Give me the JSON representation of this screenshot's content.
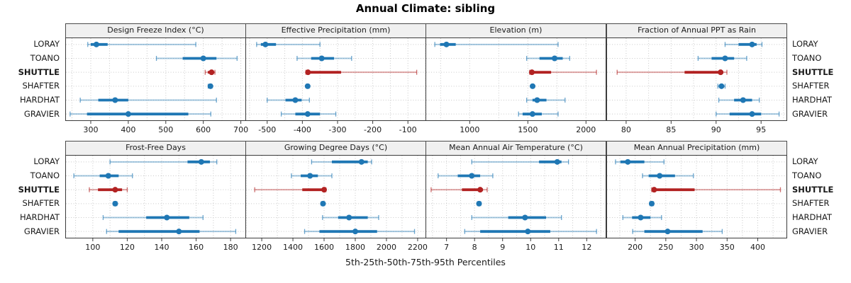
{
  "figure": {
    "title": "Annual Climate: sibling",
    "caption": "5th-25th-50th-75th-95th Percentiles"
  },
  "chart_data": {
    "type": "dotplot",
    "layout": "lattice 2 rows x 4 columns, percentile whisker dotplots",
    "percentile_levels": [
      5,
      25,
      50,
      75,
      95
    ],
    "stations": [
      "LORAY",
      "TOANO",
      "SHUTTLE",
      "SHAFTER",
      "HARDHAT",
      "GRAVIER"
    ],
    "highlight_station": "SHUTTLE",
    "colors": {
      "normal": "#1F77B4",
      "highlight": "#B22222",
      "strip_bg": "#f0f0f0",
      "grid": "#c9c9c9",
      "border": "#3c3c3c"
    },
    "panels": [
      {
        "title": "Design Freeze Index (°C)",
        "xlim": [
          232,
          714
        ],
        "ticks": [
          300,
          400,
          500,
          600,
          700
        ],
        "minor_step": 50,
        "series": [
          {
            "name": "LORAY",
            "values": [
              292,
              300,
              315,
              345,
              580
            ]
          },
          {
            "name": "TOANO",
            "values": [
              475,
              545,
              600,
              635,
              690
            ]
          },
          {
            "name": "SHUTTLE",
            "values": [
              605,
              612,
              622,
              627,
              631
            ]
          },
          {
            "name": "SHAFTER",
            "values": [
              613,
              616,
              619,
              621,
              623
            ]
          },
          {
            "name": "HARDHAT",
            "values": [
              272,
              320,
              365,
              400,
              635
            ]
          },
          {
            "name": "GRAVIER",
            "values": [
              245,
              290,
              400,
              560,
              620
            ]
          }
        ]
      },
      {
        "title": "Effective Precipitation (mm)",
        "xlim": [
          -562,
          -48
        ],
        "ticks": [
          -500,
          -400,
          -300,
          -200,
          -100
        ],
        "minor_step": 50,
        "series": [
          {
            "name": "LORAY",
            "values": [
              -530,
              -518,
              -505,
              -475,
              -350
            ]
          },
          {
            "name": "TOANO",
            "values": [
              -415,
              -375,
              -345,
              -310,
              -260
            ]
          },
          {
            "name": "SHUTTLE",
            "values": [
              -390,
              -387,
              -384,
              -290,
              -75
            ]
          },
          {
            "name": "SHAFTER",
            "values": [
              -389,
              -387,
              -385,
              -383,
              -381
            ]
          },
          {
            "name": "HARDHAT",
            "values": [
              -500,
              -448,
              -420,
              -402,
              -380
            ]
          },
          {
            "name": "GRAVIER",
            "values": [
              -460,
              -420,
              -385,
              -350,
              -305
            ]
          }
        ]
      },
      {
        "title": "Elevation (m)",
        "xlim": [
          620,
          2175
        ],
        "ticks": [
          1000,
          1500,
          2000
        ],
        "minor_step": 250,
        "series": [
          {
            "name": "LORAY",
            "values": [
              700,
              745,
              800,
              880,
              1760
            ]
          },
          {
            "name": "TOANO",
            "values": [
              1490,
              1600,
              1730,
              1800,
              1860
            ]
          },
          {
            "name": "SHUTTLE",
            "values": [
              1515,
              1525,
              1535,
              1700,
              2090
            ]
          },
          {
            "name": "SHAFTER",
            "values": [
              1530,
              1536,
              1541,
              1546,
              1551
            ]
          },
          {
            "name": "HARDHAT",
            "values": [
              1490,
              1540,
              1580,
              1660,
              1820
            ]
          },
          {
            "name": "GRAVIER",
            "values": [
              1420,
              1455,
              1540,
              1620,
              1760
            ]
          }
        ]
      },
      {
        "title": "Fraction of Annual PPT as Rain",
        "xlim": [
          77.8,
          97.9
        ],
        "ticks": [
          80,
          85,
          90,
          95
        ],
        "minor_step": 2.5,
        "series": [
          {
            "name": "LORAY",
            "values": [
              91,
              92.5,
              94,
              94.5,
              95.1
            ]
          },
          {
            "name": "TOANO",
            "values": [
              88,
              89.5,
              91,
              92,
              93.4
            ]
          },
          {
            "name": "SHUTTLE",
            "values": [
              79,
              86.5,
              90.5,
              90.8,
              91.2
            ]
          },
          {
            "name": "SHAFTER",
            "values": [
              90.2,
              90.4,
              90.6,
              90.8,
              91
            ]
          },
          {
            "name": "HARDHAT",
            "values": [
              90.3,
              92,
              93,
              94,
              94.8
            ]
          },
          {
            "name": "GRAVIER",
            "values": [
              90,
              91.5,
              94,
              95,
              97
            ]
          }
        ]
      },
      {
        "title": "Frost-Free Days",
        "xlim": [
          84,
          189
        ],
        "ticks": [
          100,
          120,
          140,
          160,
          180
        ],
        "minor_step": 10,
        "series": [
          {
            "name": "LORAY",
            "values": [
              110,
              155,
              163,
              168,
              172
            ]
          },
          {
            "name": "TOANO",
            "values": [
              89,
              104,
              109,
              115,
              123
            ]
          },
          {
            "name": "SHUTTLE",
            "values": [
              98,
              103,
              113,
              117,
              120
            ]
          },
          {
            "name": "SHAFTER",
            "values": [
              112,
              112.5,
              113,
              113.5,
              114
            ]
          },
          {
            "name": "HARDHAT",
            "values": [
              106,
              131,
              143,
              156,
              164
            ]
          },
          {
            "name": "GRAVIER",
            "values": [
              108,
              115,
              150,
              162,
              183
            ]
          }
        ]
      },
      {
        "title": "Growing Degree Days (°C)",
        "xlim": [
          1095,
          2255
        ],
        "ticks": [
          1200,
          1400,
          1600,
          1800,
          2000,
          2200
        ],
        "minor_step": 100,
        "series": [
          {
            "name": "LORAY",
            "values": [
              1520,
              1650,
              1840,
              1880,
              1905
            ]
          },
          {
            "name": "TOANO",
            "values": [
              1390,
              1450,
              1510,
              1560,
              1650
            ]
          },
          {
            "name": "SHUTTLE",
            "values": [
              1155,
              1460,
              1600,
              1606,
              1612
            ]
          },
          {
            "name": "SHAFTER",
            "values": [
              1582,
              1588,
              1593,
              1598,
              1603
            ]
          },
          {
            "name": "HARDHAT",
            "values": [
              1590,
              1690,
              1760,
              1880,
              1950
            ]
          },
          {
            "name": "GRAVIER",
            "values": [
              1475,
              1570,
              1800,
              1940,
              2180
            ]
          }
        ]
      },
      {
        "title": "Mean Annual Air Temperature (°C)",
        "xlim": [
          6.25,
          12.7
        ],
        "ticks": [
          7,
          8,
          9,
          10,
          11,
          12
        ],
        "minor_step": 0.5,
        "series": [
          {
            "name": "LORAY",
            "values": [
              7.9,
              10.3,
              10.95,
              11.1,
              11.35
            ]
          },
          {
            "name": "TOANO",
            "values": [
              6.7,
              7.4,
              7.9,
              8.2,
              8.65
            ]
          },
          {
            "name": "SHUTTLE",
            "values": [
              6.45,
              7.55,
              8.2,
              8.3,
              8.45
            ]
          },
          {
            "name": "SHAFTER",
            "values": [
              8.1,
              8.13,
              8.16,
              8.19,
              8.22
            ]
          },
          {
            "name": "HARDHAT",
            "values": [
              7.9,
              9.2,
              9.8,
              10.55,
              11.1
            ]
          },
          {
            "name": "GRAVIER",
            "values": [
              7.65,
              8.2,
              9.9,
              10.7,
              12.35
            ]
          }
        ]
      },
      {
        "title": "Mean Annual Precipitation (mm)",
        "xlim": [
          153,
          448
        ],
        "ticks": [
          200,
          250,
          300,
          350,
          400
        ],
        "minor_step": 25,
        "series": [
          {
            "name": "LORAY",
            "values": [
              168,
              176,
              188,
              215,
              247
            ]
          },
          {
            "name": "TOANO",
            "values": [
              212,
              222,
              240,
              265,
              295
            ]
          },
          {
            "name": "SHUTTLE",
            "values": [
              227,
              229,
              231,
              297,
              437
            ]
          },
          {
            "name": "SHAFTER",
            "values": [
              224,
              225.5,
              227,
              228.5,
              230
            ]
          },
          {
            "name": "HARDHAT",
            "values": [
              180,
              195,
              209,
              225,
              243
            ]
          },
          {
            "name": "GRAVIER",
            "values": [
              196,
              215,
              253,
              310,
              342
            ]
          }
        ]
      }
    ]
  }
}
